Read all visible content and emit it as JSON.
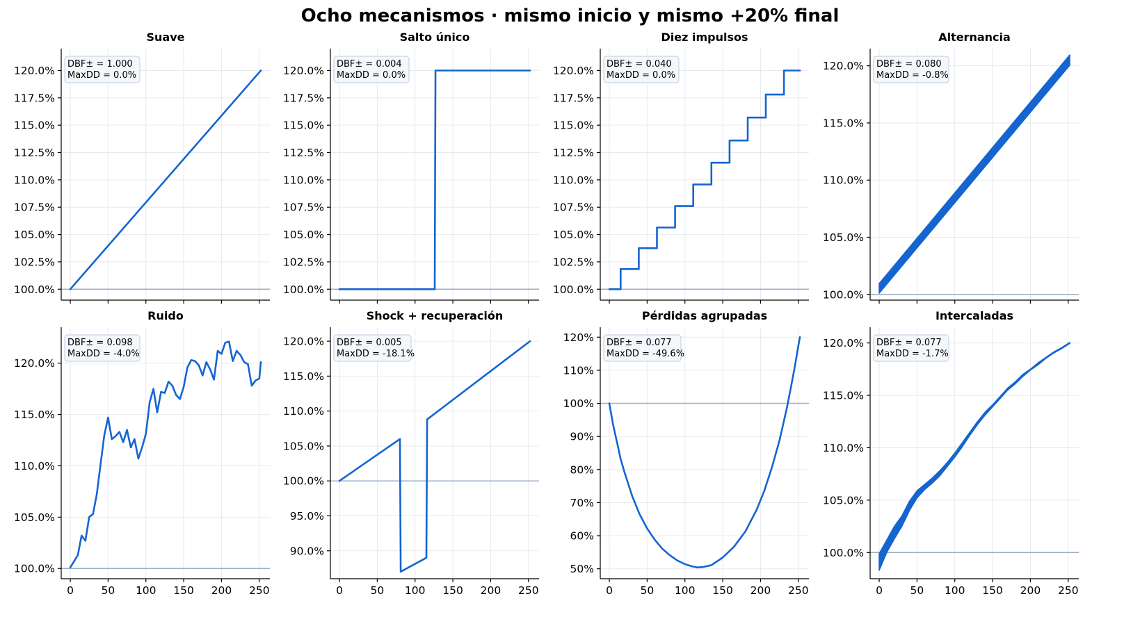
{
  "figure": {
    "title": "Ocho mecanismos · mismo inicio y mismo +20% final"
  },
  "colors": {
    "line": "#1565d0",
    "baseline": "#9aaec4",
    "grid": "#e6e9ee",
    "box_edge": "#c8d6e6",
    "box_fill": "#f4f7fb"
  },
  "chart_data": [
    {
      "type": "line",
      "title": "Suave",
      "xlabel": "",
      "ylabel": "",
      "annotation": {
        "dbf": "DBF± = 1.000",
        "maxdd": "MaxDD = 0.0%"
      },
      "xlim": [
        -12,
        264
      ],
      "ylim": [
        99,
        122
      ],
      "y_format": "pct1",
      "xticks": [
        0,
        50,
        100,
        150,
        200,
        250
      ],
      "show_xtick_labels": false,
      "yticks": [
        100,
        102.5,
        105,
        107.5,
        110,
        112.5,
        115,
        117.5,
        120
      ],
      "baseline": 100,
      "grid": true,
      "series": [
        {
          "kind": "points",
          "x": [
            0,
            252
          ],
          "y": [
            100,
            120
          ]
        }
      ]
    },
    {
      "type": "line",
      "title": "Salto único",
      "xlabel": "",
      "ylabel": "",
      "annotation": {
        "dbf": "DBF± = 0.004",
        "maxdd": "MaxDD = 0.0%"
      },
      "xlim": [
        -12,
        264
      ],
      "ylim": [
        99,
        122
      ],
      "y_format": "pct1",
      "xticks": [
        0,
        50,
        100,
        150,
        200,
        250
      ],
      "show_xtick_labels": false,
      "yticks": [
        100,
        102.5,
        105,
        107.5,
        110,
        112.5,
        115,
        117.5,
        120
      ],
      "baseline": 100,
      "grid": true,
      "series": [
        {
          "kind": "points",
          "x": [
            0,
            126,
            127,
            252
          ],
          "y": [
            100,
            100,
            120,
            120
          ]
        }
      ]
    },
    {
      "type": "line",
      "title": "Diez impulsos",
      "xlabel": "",
      "ylabel": "",
      "annotation": {
        "dbf": "DBF± = 0.040",
        "maxdd": "MaxDD = 0.0%"
      },
      "xlim": [
        -12,
        264
      ],
      "ylim": [
        99,
        122
      ],
      "y_format": "pct1",
      "xticks": [
        0,
        50,
        100,
        150,
        200,
        250
      ],
      "show_xtick_labels": false,
      "yticks": [
        100,
        102.5,
        105,
        107.5,
        110,
        112.5,
        115,
        117.5,
        120
      ],
      "baseline": 100,
      "grid": true,
      "series": [
        {
          "kind": "steps",
          "x": [
            0,
            15,
            15,
            39,
            39,
            63,
            63,
            87,
            87,
            111,
            111,
            135,
            135,
            159,
            159,
            183,
            183,
            207,
            207,
            231,
            231,
            252
          ],
          "y": [
            100,
            100,
            101.84,
            101.84,
            103.75,
            103.75,
            105.64,
            105.64,
            107.6,
            107.6,
            109.57,
            109.57,
            111.57,
            111.57,
            113.6,
            113.6,
            115.7,
            115.7,
            117.8,
            117.8,
            120,
            120
          ]
        }
      ]
    },
    {
      "type": "line",
      "title": "Alternancia",
      "xlabel": "",
      "ylabel": "",
      "annotation": {
        "dbf": "DBF± = 0.080",
        "maxdd": "MaxDD = -0.8%"
      },
      "xlim": [
        -12,
        264
      ],
      "ylim": [
        99.5,
        121.5
      ],
      "y_format": "pct1",
      "xticks": [
        0,
        50,
        100,
        150,
        200,
        250
      ],
      "show_xtick_labels": false,
      "yticks": [
        100,
        105,
        110,
        115,
        120
      ],
      "baseline": 100,
      "grid": true,
      "series": [
        {
          "kind": "band",
          "x": [
            0,
            252
          ],
          "lower": [
            100.1,
            120.05
          ],
          "upper": [
            100.95,
            120.95
          ]
        }
      ]
    },
    {
      "type": "line",
      "title": "Ruido",
      "xlabel": "",
      "ylabel": "",
      "annotation": {
        "dbf": "DBF± = 0.098",
        "maxdd": "MaxDD = -4.0%"
      },
      "xlim": [
        -12,
        264
      ],
      "ylim": [
        99,
        123.5
      ],
      "y_format": "pct1",
      "xticks": [
        0,
        50,
        100,
        150,
        200,
        250
      ],
      "show_xtick_labels": true,
      "yticks": [
        100,
        105,
        110,
        115,
        120
      ],
      "baseline": 100,
      "grid": true,
      "series": [
        {
          "kind": "points",
          "x": [
            0,
            5,
            10,
            15,
            20,
            25,
            30,
            35,
            40,
            45,
            50,
            55,
            60,
            65,
            70,
            75,
            80,
            85,
            90,
            95,
            100,
            105,
            110,
            115,
            120,
            125,
            130,
            135,
            140,
            145,
            150,
            155,
            160,
            165,
            170,
            175,
            180,
            185,
            190,
            195,
            200,
            205,
            210,
            215,
            220,
            225,
            230,
            235,
            240,
            245,
            250,
            252
          ],
          "y": [
            100.1,
            100.7,
            101.3,
            103.2,
            102.7,
            105.0,
            105.3,
            107.2,
            110.1,
            113.0,
            114.7,
            112.6,
            112.9,
            113.3,
            112.3,
            113.5,
            111.8,
            112.6,
            110.7,
            111.8,
            113.1,
            116.2,
            117.5,
            115.2,
            117.2,
            117.1,
            118.2,
            117.8,
            116.9,
            116.5,
            117.7,
            119.6,
            120.3,
            120.2,
            119.8,
            118.8,
            120.1,
            119.4,
            118.4,
            121.2,
            120.9,
            122.0,
            122.1,
            120.2,
            121.2,
            120.8,
            120.1,
            119.9,
            117.8,
            118.3,
            118.5,
            120.1
          ]
        }
      ]
    },
    {
      "type": "line",
      "title": "Shock + recuperación",
      "xlabel": "",
      "ylabel": "",
      "annotation": {
        "dbf": "DBF± = 0.005",
        "maxdd": "MaxDD = -18.1%"
      },
      "xlim": [
        -12,
        264
      ],
      "ylim": [
        86,
        122
      ],
      "y_format": "pct1",
      "xticks": [
        0,
        50,
        100,
        150,
        200,
        250
      ],
      "show_xtick_labels": true,
      "yticks": [
        90,
        95,
        100,
        105,
        110,
        115,
        120
      ],
      "baseline": 100,
      "grid": true,
      "series": [
        {
          "kind": "points",
          "x": [
            0,
            80,
            81,
            115,
            116,
            252
          ],
          "y": [
            100,
            106,
            87,
            89,
            108.8,
            120
          ]
        }
      ]
    },
    {
      "type": "line",
      "title": "Pérdidas agrupadas",
      "xlabel": "",
      "ylabel": "",
      "annotation": {
        "dbf": "DBF± = 0.077",
        "maxdd": "MaxDD = -49.6%"
      },
      "xlim": [
        -12,
        264
      ],
      "ylim": [
        47,
        123
      ],
      "y_format": "pct0",
      "xticks": [
        0,
        50,
        100,
        150,
        200,
        250
      ],
      "show_xtick_labels": true,
      "yticks": [
        50,
        60,
        70,
        80,
        90,
        100,
        110,
        120
      ],
      "baseline": 100,
      "grid": true,
      "series": [
        {
          "kind": "points",
          "x": [
            0,
            5,
            10,
            15,
            20,
            30,
            40,
            50,
            60,
            70,
            80,
            90,
            100,
            110,
            117,
            125,
            135,
            150,
            165,
            180,
            195,
            205,
            215,
            225,
            235,
            240,
            245,
            250,
            252
          ],
          "y": [
            100,
            93.5,
            88.4,
            83.2,
            79.2,
            72.1,
            66.5,
            62.2,
            58.8,
            56.1,
            54.1,
            52.5,
            51.4,
            50.7,
            50.4,
            50.6,
            51.1,
            53.4,
            56.7,
            61.3,
            67.9,
            73.6,
            80.6,
            88.7,
            98.8,
            104.6,
            110.6,
            117.4,
            120
          ]
        }
      ]
    },
    {
      "type": "line",
      "title": "Intercaladas",
      "xlabel": "",
      "ylabel": "",
      "annotation": {
        "dbf": "DBF± = 0.077",
        "maxdd": "MaxDD = -1.7%"
      },
      "xlim": [
        -12,
        264
      ],
      "ylim": [
        97.5,
        121.5
      ],
      "y_format": "pct1",
      "xticks": [
        0,
        50,
        100,
        150,
        200,
        250
      ],
      "show_xtick_labels": true,
      "yticks": [
        100,
        105,
        110,
        115,
        120
      ],
      "baseline": 100,
      "grid": true,
      "series": [
        {
          "kind": "band",
          "x": [
            0,
            10,
            20,
            30,
            40,
            50,
            60,
            70,
            80,
            90,
            100,
            110,
            120,
            130,
            140,
            150,
            160,
            170,
            180,
            190,
            200,
            210,
            220,
            230,
            240,
            252
          ],
          "lower": [
            98.3,
            100.0,
            101.3,
            102.5,
            104.0,
            105.2,
            106.0,
            106.6,
            107.3,
            108.2,
            109.1,
            110.1,
            111.2,
            112.2,
            113.1,
            113.9,
            114.7,
            115.5,
            116.1,
            116.8,
            117.4,
            117.9,
            118.5,
            119.0,
            119.4,
            119.95
          ],
          "upper": [
            99.9,
            101.2,
            102.5,
            103.5,
            104.9,
            105.9,
            106.5,
            107.1,
            107.8,
            108.6,
            109.5,
            110.5,
            111.5,
            112.5,
            113.4,
            114.1,
            114.9,
            115.7,
            116.3,
            117.0,
            117.5,
            118.1,
            118.6,
            119.1,
            119.5,
            120.05
          ]
        }
      ]
    }
  ]
}
